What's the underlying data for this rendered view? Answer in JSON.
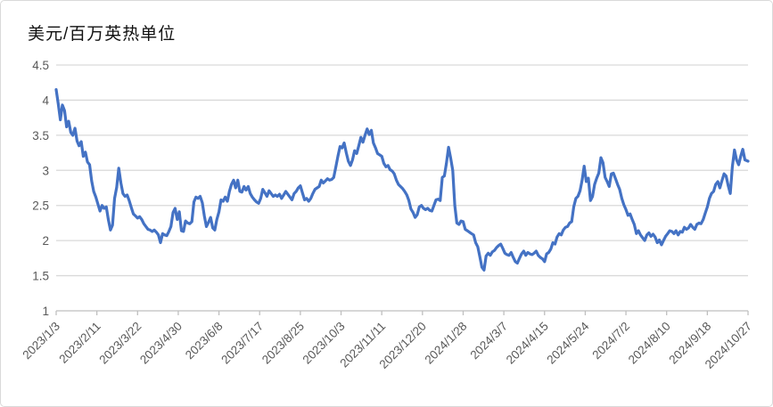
{
  "chart_data": {
    "type": "line",
    "title": "美元/百万英热单位",
    "xlabel": "",
    "ylabel": "",
    "ylim": [
      1,
      4.5
    ],
    "y_ticks": [
      {
        "value": 4.5,
        "label": "4.5"
      },
      {
        "value": 4,
        "label": "4"
      },
      {
        "value": 3.5,
        "label": "3.5"
      },
      {
        "value": 3,
        "label": "3"
      },
      {
        "value": 2.5,
        "label": "2.5"
      },
      {
        "value": 2,
        "label": "2"
      },
      {
        "value": 1.5,
        "label": "1.5"
      },
      {
        "value": 1,
        "label": "1"
      }
    ],
    "x_total_days": 663,
    "x_ticks": [
      {
        "day": 0,
        "label": "2023/1/3"
      },
      {
        "day": 39,
        "label": "2023/2/11"
      },
      {
        "day": 78,
        "label": "2023/3/22"
      },
      {
        "day": 117,
        "label": "2023/4/30"
      },
      {
        "day": 156,
        "label": "2023/6/8"
      },
      {
        "day": 195,
        "label": "2023/7/17"
      },
      {
        "day": 234,
        "label": "2023/8/25"
      },
      {
        "day": 273,
        "label": "2023/10/3"
      },
      {
        "day": 312,
        "label": "2023/11/11"
      },
      {
        "day": 351,
        "label": "2023/12/20"
      },
      {
        "day": 390,
        "label": "2024/1/28"
      },
      {
        "day": 429,
        "label": "2024/3/7"
      },
      {
        "day": 468,
        "label": "2024/4/15"
      },
      {
        "day": 507,
        "label": "2024/5/24"
      },
      {
        "day": 546,
        "label": "2024/7/2"
      },
      {
        "day": 585,
        "label": "2024/8/10"
      },
      {
        "day": 624,
        "label": "2024/9/18"
      },
      {
        "day": 663,
        "label": "2024/10/27"
      }
    ],
    "grid": true,
    "legend": "none",
    "colors": {
      "line": "#4472C4",
      "gridline": "#D9D9D9",
      "axis": "#BFBFBF",
      "tick_text": "#595959",
      "title_text": "#111111",
      "background": "#FFFFFF",
      "frame_border": "#D9D9D9"
    },
    "points": [
      [
        0,
        4.15
      ],
      [
        2,
        3.95
      ],
      [
        4,
        3.72
      ],
      [
        6,
        3.93
      ],
      [
        8,
        3.85
      ],
      [
        10,
        3.62
      ],
      [
        12,
        3.7
      ],
      [
        14,
        3.54
      ],
      [
        16,
        3.5
      ],
      [
        18,
        3.6
      ],
      [
        20,
        3.42
      ],
      [
        22,
        3.35
      ],
      [
        24,
        3.41
      ],
      [
        26,
        3.2
      ],
      [
        28,
        3.26
      ],
      [
        30,
        3.12
      ],
      [
        32,
        3.08
      ],
      [
        34,
        2.85
      ],
      [
        36,
        2.7
      ],
      [
        38,
        2.62
      ],
      [
        40,
        2.52
      ],
      [
        42,
        2.42
      ],
      [
        44,
        2.5
      ],
      [
        46,
        2.46
      ],
      [
        48,
        2.48
      ],
      [
        50,
        2.3
      ],
      [
        52,
        2.15
      ],
      [
        54,
        2.22
      ],
      [
        56,
        2.6
      ],
      [
        58,
        2.76
      ],
      [
        60,
        3.03
      ],
      [
        62,
        2.82
      ],
      [
        64,
        2.67
      ],
      [
        66,
        2.63
      ],
      [
        68,
        2.65
      ],
      [
        70,
        2.57
      ],
      [
        72,
        2.47
      ],
      [
        74,
        2.38
      ],
      [
        76,
        2.35
      ],
      [
        78,
        2.32
      ],
      [
        80,
        2.34
      ],
      [
        82,
        2.3
      ],
      [
        84,
        2.24
      ],
      [
        86,
        2.2
      ],
      [
        88,
        2.16
      ],
      [
        90,
        2.15
      ],
      [
        92,
        2.13
      ],
      [
        94,
        2.15
      ],
      [
        96,
        2.12
      ],
      [
        98,
        2.08
      ],
      [
        100,
        1.97
      ],
      [
        102,
        2.1
      ],
      [
        104,
        2.08
      ],
      [
        106,
        2.07
      ],
      [
        108,
        2.13
      ],
      [
        110,
        2.2
      ],
      [
        112,
        2.4
      ],
      [
        114,
        2.46
      ],
      [
        116,
        2.3
      ],
      [
        118,
        2.41
      ],
      [
        120,
        2.14
      ],
      [
        122,
        2.13
      ],
      [
        124,
        2.28
      ],
      [
        126,
        2.25
      ],
      [
        128,
        2.24
      ],
      [
        130,
        2.27
      ],
      [
        132,
        2.55
      ],
      [
        134,
        2.62
      ],
      [
        136,
        2.6
      ],
      [
        138,
        2.63
      ],
      [
        140,
        2.54
      ],
      [
        142,
        2.35
      ],
      [
        144,
        2.2
      ],
      [
        146,
        2.26
      ],
      [
        148,
        2.33
      ],
      [
        150,
        2.18
      ],
      [
        152,
        2.15
      ],
      [
        154,
        2.3
      ],
      [
        156,
        2.41
      ],
      [
        158,
        2.58
      ],
      [
        160,
        2.56
      ],
      [
        162,
        2.62
      ],
      [
        164,
        2.56
      ],
      [
        166,
        2.7
      ],
      [
        168,
        2.8
      ],
      [
        170,
        2.86
      ],
      [
        172,
        2.75
      ],
      [
        174,
        2.86
      ],
      [
        176,
        2.7
      ],
      [
        178,
        2.69
      ],
      [
        180,
        2.77
      ],
      [
        182,
        2.72
      ],
      [
        184,
        2.77
      ],
      [
        186,
        2.67
      ],
      [
        188,
        2.62
      ],
      [
        190,
        2.58
      ],
      [
        192,
        2.55
      ],
      [
        194,
        2.53
      ],
      [
        196,
        2.6
      ],
      [
        198,
        2.73
      ],
      [
        200,
        2.68
      ],
      [
        202,
        2.63
      ],
      [
        204,
        2.71
      ],
      [
        206,
        2.67
      ],
      [
        208,
        2.63
      ],
      [
        210,
        2.65
      ],
      [
        212,
        2.63
      ],
      [
        214,
        2.66
      ],
      [
        216,
        2.6
      ],
      [
        218,
        2.65
      ],
      [
        220,
        2.7
      ],
      [
        222,
        2.66
      ],
      [
        224,
        2.62
      ],
      [
        226,
        2.58
      ],
      [
        228,
        2.67
      ],
      [
        230,
        2.7
      ],
      [
        232,
        2.75
      ],
      [
        234,
        2.78
      ],
      [
        236,
        2.68
      ],
      [
        238,
        2.58
      ],
      [
        240,
        2.6
      ],
      [
        242,
        2.56
      ],
      [
        244,
        2.6
      ],
      [
        246,
        2.67
      ],
      [
        248,
        2.73
      ],
      [
        250,
        2.75
      ],
      [
        252,
        2.77
      ],
      [
        254,
        2.86
      ],
      [
        256,
        2.82
      ],
      [
        258,
        2.85
      ],
      [
        260,
        2.88
      ],
      [
        262,
        2.86
      ],
      [
        264,
        2.87
      ],
      [
        266,
        2.9
      ],
      [
        268,
        3.05
      ],
      [
        270,
        3.2
      ],
      [
        272,
        3.34
      ],
      [
        274,
        3.32
      ],
      [
        276,
        3.39
      ],
      [
        278,
        3.25
      ],
      [
        280,
        3.13
      ],
      [
        282,
        3.07
      ],
      [
        284,
        3.15
      ],
      [
        286,
        3.28
      ],
      [
        288,
        3.24
      ],
      [
        290,
        3.35
      ],
      [
        292,
        3.47
      ],
      [
        294,
        3.4
      ],
      [
        296,
        3.5
      ],
      [
        298,
        3.59
      ],
      [
        300,
        3.51
      ],
      [
        302,
        3.57
      ],
      [
        304,
        3.39
      ],
      [
        306,
        3.32
      ],
      [
        308,
        3.24
      ],
      [
        310,
        3.22
      ],
      [
        312,
        3.2
      ],
      [
        314,
        3.1
      ],
      [
        316,
        3.05
      ],
      [
        318,
        3.07
      ],
      [
        320,
        3.01
      ],
      [
        322,
        2.99
      ],
      [
        324,
        2.95
      ],
      [
        326,
        2.86
      ],
      [
        328,
        2.8
      ],
      [
        330,
        2.77
      ],
      [
        332,
        2.74
      ],
      [
        334,
        2.7
      ],
      [
        336,
        2.65
      ],
      [
        338,
        2.57
      ],
      [
        340,
        2.45
      ],
      [
        342,
        2.4
      ],
      [
        344,
        2.33
      ],
      [
        346,
        2.37
      ],
      [
        348,
        2.48
      ],
      [
        350,
        2.5
      ],
      [
        352,
        2.46
      ],
      [
        354,
        2.44
      ],
      [
        356,
        2.46
      ],
      [
        358,
        2.43
      ],
      [
        360,
        2.42
      ],
      [
        362,
        2.5
      ],
      [
        364,
        2.58
      ],
      [
        366,
        2.59
      ],
      [
        368,
        2.57
      ],
      [
        370,
        2.9
      ],
      [
        372,
        2.92
      ],
      [
        374,
        3.1
      ],
      [
        376,
        3.33
      ],
      [
        378,
        3.18
      ],
      [
        380,
        3.0
      ],
      [
        382,
        2.5
      ],
      [
        384,
        2.25
      ],
      [
        386,
        2.23
      ],
      [
        388,
        2.28
      ],
      [
        390,
        2.27
      ],
      [
        392,
        2.16
      ],
      [
        394,
        2.14
      ],
      [
        396,
        2.12
      ],
      [
        398,
        2.1
      ],
      [
        400,
        2.08
      ],
      [
        402,
        1.97
      ],
      [
        404,
        1.91
      ],
      [
        406,
        1.77
      ],
      [
        408,
        1.62
      ],
      [
        410,
        1.58
      ],
      [
        412,
        1.78
      ],
      [
        414,
        1.82
      ],
      [
        416,
        1.79
      ],
      [
        418,
        1.84
      ],
      [
        420,
        1.86
      ],
      [
        422,
        1.9
      ],
      [
        424,
        1.93
      ],
      [
        426,
        1.95
      ],
      [
        428,
        1.89
      ],
      [
        430,
        1.82
      ],
      [
        432,
        1.8
      ],
      [
        434,
        1.79
      ],
      [
        436,
        1.83
      ],
      [
        438,
        1.76
      ],
      [
        440,
        1.7
      ],
      [
        442,
        1.68
      ],
      [
        444,
        1.75
      ],
      [
        446,
        1.81
      ],
      [
        448,
        1.85
      ],
      [
        450,
        1.79
      ],
      [
        452,
        1.83
      ],
      [
        454,
        1.81
      ],
      [
        456,
        1.8
      ],
      [
        458,
        1.82
      ],
      [
        460,
        1.85
      ],
      [
        462,
        1.79
      ],
      [
        464,
        1.76
      ],
      [
        466,
        1.74
      ],
      [
        468,
        1.7
      ],
      [
        470,
        1.81
      ],
      [
        472,
        1.83
      ],
      [
        474,
        1.88
      ],
      [
        476,
        1.97
      ],
      [
        478,
        1.95
      ],
      [
        480,
        2.05
      ],
      [
        482,
        2.1
      ],
      [
        484,
        2.08
      ],
      [
        486,
        2.15
      ],
      [
        488,
        2.19
      ],
      [
        490,
        2.2
      ],
      [
        492,
        2.25
      ],
      [
        494,
        2.27
      ],
      [
        496,
        2.48
      ],
      [
        498,
        2.6
      ],
      [
        500,
        2.63
      ],
      [
        502,
        2.71
      ],
      [
        504,
        2.86
      ],
      [
        506,
        3.06
      ],
      [
        508,
        2.84
      ],
      [
        510,
        2.89
      ],
      [
        512,
        2.57
      ],
      [
        514,
        2.63
      ],
      [
        516,
        2.8
      ],
      [
        518,
        2.89
      ],
      [
        520,
        2.96
      ],
      [
        522,
        3.18
      ],
      [
        524,
        3.11
      ],
      [
        526,
        2.9
      ],
      [
        528,
        2.84
      ],
      [
        530,
        2.77
      ],
      [
        532,
        2.95
      ],
      [
        534,
        2.96
      ],
      [
        536,
        2.88
      ],
      [
        538,
        2.8
      ],
      [
        540,
        2.73
      ],
      [
        542,
        2.6
      ],
      [
        544,
        2.51
      ],
      [
        546,
        2.44
      ],
      [
        548,
        2.36
      ],
      [
        550,
        2.38
      ],
      [
        552,
        2.3
      ],
      [
        554,
        2.23
      ],
      [
        556,
        2.1
      ],
      [
        558,
        2.14
      ],
      [
        560,
        2.08
      ],
      [
        562,
        2.04
      ],
      [
        564,
        2.0
      ],
      [
        566,
        2.08
      ],
      [
        568,
        2.11
      ],
      [
        570,
        2.06
      ],
      [
        572,
        2.09
      ],
      [
        574,
        2.05
      ],
      [
        576,
        1.97
      ],
      [
        578,
        2.01
      ],
      [
        580,
        1.94
      ],
      [
        582,
        2.0
      ],
      [
        584,
        2.06
      ],
      [
        586,
        2.1
      ],
      [
        588,
        2.14
      ],
      [
        590,
        2.13
      ],
      [
        592,
        2.1
      ],
      [
        594,
        2.14
      ],
      [
        596,
        2.08
      ],
      [
        598,
        2.13
      ],
      [
        600,
        2.12
      ],
      [
        602,
        2.19
      ],
      [
        604,
        2.16
      ],
      [
        606,
        2.18
      ],
      [
        608,
        2.23
      ],
      [
        610,
        2.19
      ],
      [
        612,
        2.16
      ],
      [
        614,
        2.23
      ],
      [
        616,
        2.25
      ],
      [
        618,
        2.24
      ],
      [
        620,
        2.3
      ],
      [
        622,
        2.39
      ],
      [
        624,
        2.48
      ],
      [
        626,
        2.6
      ],
      [
        628,
        2.67
      ],
      [
        630,
        2.7
      ],
      [
        632,
        2.8
      ],
      [
        634,
        2.84
      ],
      [
        636,
        2.75
      ],
      [
        638,
        2.85
      ],
      [
        640,
        2.95
      ],
      [
        642,
        2.92
      ],
      [
        644,
        2.78
      ],
      [
        646,
        2.67
      ],
      [
        648,
        3.05
      ],
      [
        650,
        3.29
      ],
      [
        652,
        3.15
      ],
      [
        654,
        3.08
      ],
      [
        656,
        3.2
      ],
      [
        658,
        3.3
      ],
      [
        660,
        3.15
      ],
      [
        663,
        3.13
      ]
    ]
  }
}
